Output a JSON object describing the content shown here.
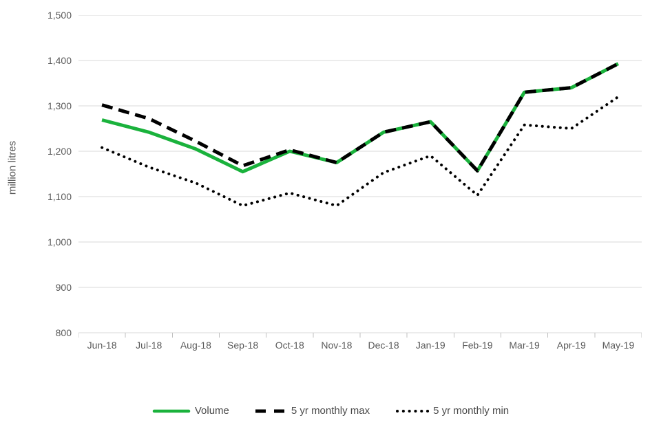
{
  "colors": {
    "accent_green": "#1AB23C",
    "line_black": "#000000",
    "gridline": "#D9D9D9",
    "tick_mark": "#BFBFBF",
    "axis_text": "#595959",
    "background": "#FFFFFF"
  },
  "chart_data": {
    "type": "line",
    "title": "",
    "xlabel": "",
    "ylabel": "million litres",
    "ylim": [
      800,
      1500
    ],
    "ytick_step": 100,
    "ytick_labels": [
      "800",
      "900",
      "1,000",
      "1,100",
      "1,200",
      "1,300",
      "1,400",
      "1,500"
    ],
    "grid": "horizontal",
    "legend_position": "bottom",
    "categories": [
      "Jun-18",
      "Jul-18",
      "Aug-18",
      "Sep-18",
      "Oct-18",
      "Nov-18",
      "Dec-18",
      "Jan-19",
      "Feb-19",
      "Mar-19",
      "Apr-19",
      "May-19"
    ],
    "series": [
      {
        "name": "Volume",
        "style": "solid",
        "color": "#1AB23C",
        "values": [
          1269,
          1242,
          1205,
          1155,
          1200,
          1175,
          1242,
          1265,
          1157,
          1330,
          1340,
          1393
        ]
      },
      {
        "name": "5 yr monthly max",
        "style": "dashed",
        "color": "#000000",
        "values": [
          1302,
          1272,
          1222,
          1168,
          1203,
          1175,
          1242,
          1265,
          1157,
          1330,
          1340,
          1393
        ]
      },
      {
        "name": "5 yr monthly min",
        "style": "dotted",
        "color": "#000000",
        "values": [
          1208,
          1165,
          1130,
          1080,
          1108,
          1080,
          1153,
          1190,
          1103,
          1258,
          1250,
          1320
        ]
      }
    ]
  }
}
